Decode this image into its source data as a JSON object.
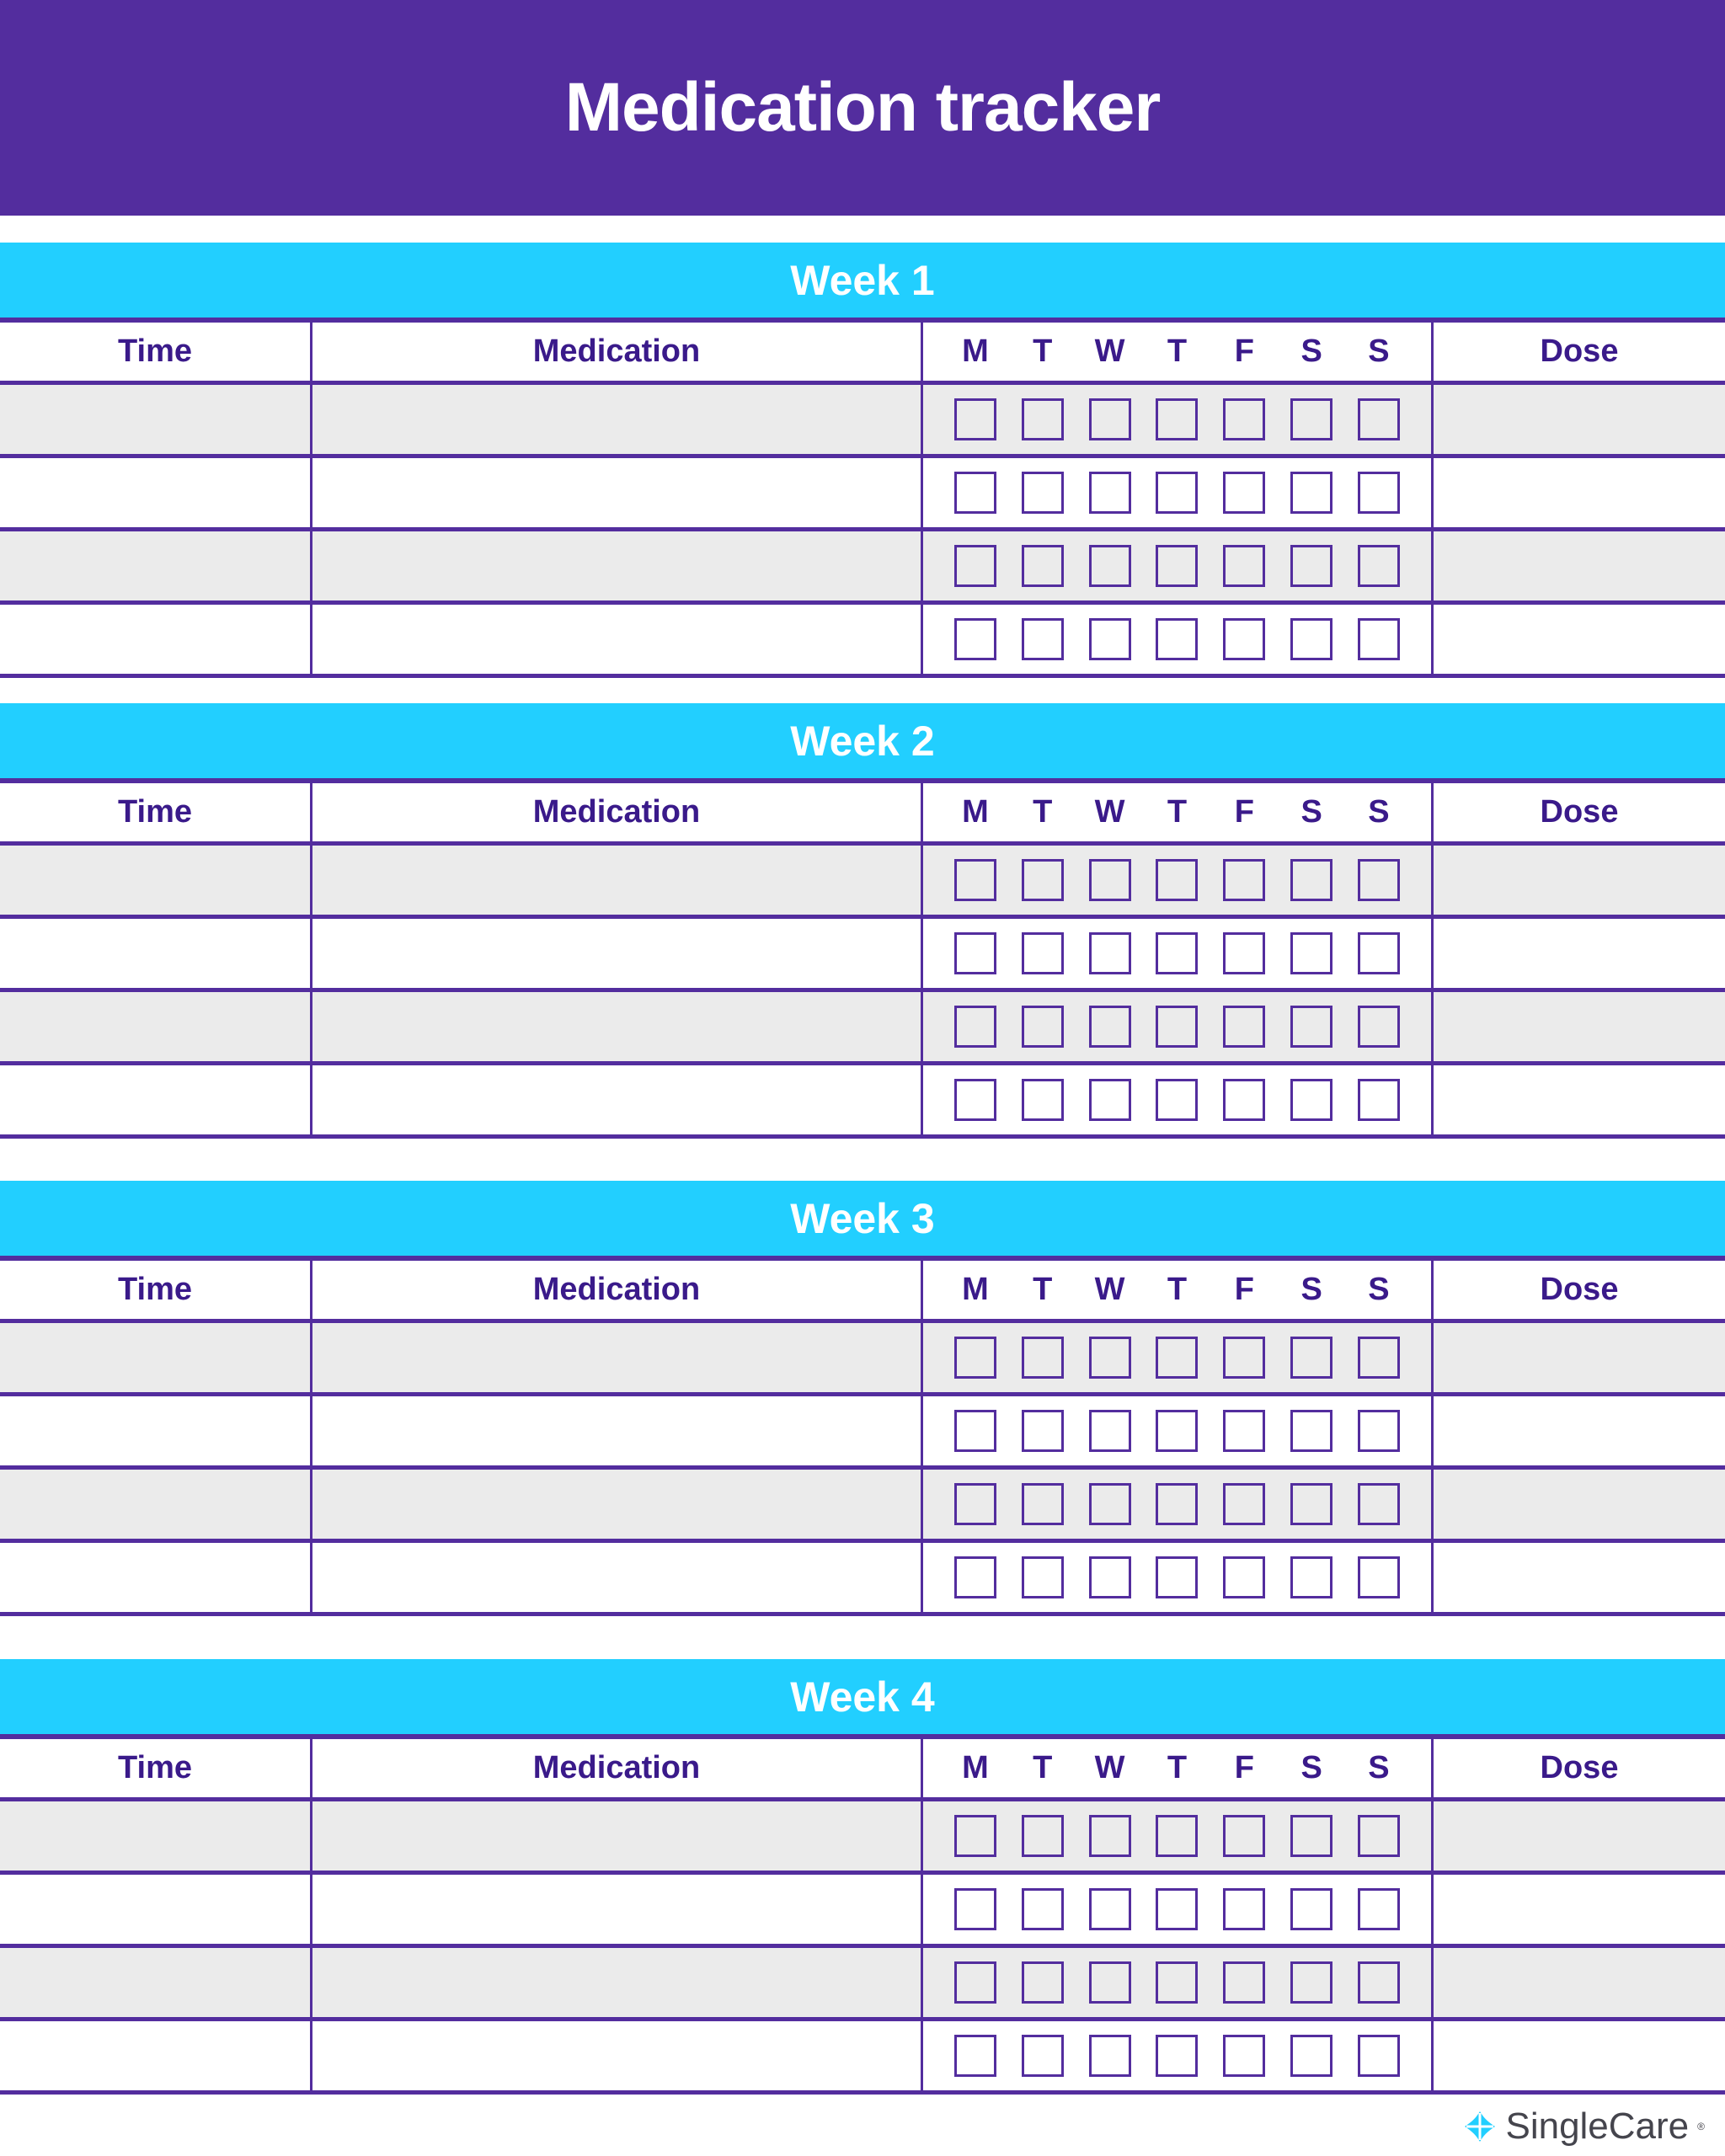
{
  "title": "Medication tracker",
  "columns": {
    "time": "Time",
    "medication": "Medication",
    "days": [
      "M",
      "T",
      "W",
      "T",
      "F",
      "S",
      "S"
    ],
    "dose": "Dose"
  },
  "weeks": [
    {
      "label": "Week 1",
      "rows": [
        [
          false,
          false,
          false,
          false,
          false,
          false,
          false
        ],
        [
          false,
          false,
          false,
          false,
          false,
          false,
          false
        ],
        [
          false,
          false,
          false,
          false,
          false,
          false,
          false
        ],
        [
          false,
          false,
          false,
          false,
          false,
          false,
          false
        ]
      ]
    },
    {
      "label": "Week 2",
      "rows": [
        [
          false,
          false,
          false,
          false,
          false,
          false,
          false
        ],
        [
          false,
          false,
          false,
          false,
          false,
          false,
          false
        ],
        [
          false,
          false,
          false,
          false,
          false,
          false,
          false
        ],
        [
          false,
          false,
          false,
          false,
          false,
          false,
          false
        ]
      ]
    },
    {
      "label": "Week 3",
      "rows": [
        [
          false,
          false,
          false,
          false,
          false,
          false,
          false
        ],
        [
          false,
          false,
          false,
          false,
          false,
          false,
          false
        ],
        [
          false,
          false,
          false,
          false,
          false,
          false,
          false
        ],
        [
          false,
          false,
          false,
          false,
          false,
          false,
          false
        ]
      ]
    },
    {
      "label": "Week 4",
      "rows": [
        [
          false,
          false,
          false,
          false,
          false,
          false,
          false
        ],
        [
          false,
          false,
          false,
          false,
          false,
          false,
          false
        ],
        [
          false,
          false,
          false,
          false,
          false,
          false,
          false
        ],
        [
          false,
          false,
          false,
          false,
          false,
          false,
          false
        ]
      ]
    }
  ],
  "logo": {
    "text": "SingleCare",
    "mark": "®"
  },
  "colors": {
    "header": "#532d9e",
    "band": "#22cfff",
    "label": "#3a1a8a",
    "stripe": "#ebebeb"
  }
}
